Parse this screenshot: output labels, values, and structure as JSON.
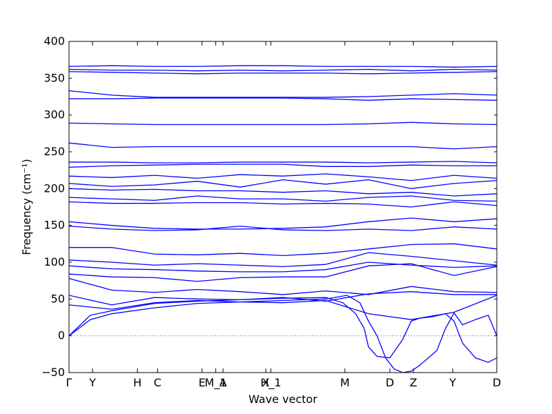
{
  "chart_data": {
    "type": "line",
    "title": "",
    "xlabel": "Wave vector",
    "ylabel": "Frequency (cm⁻¹)",
    "ylim": [
      -50,
      400
    ],
    "yticks": [
      -50,
      0,
      50,
      100,
      150,
      200,
      250,
      300,
      350,
      400
    ],
    "xlim": [
      0,
      1
    ],
    "xticks": [
      {
        "label": "Γ",
        "x": 0.0
      },
      {
        "label": "Y",
        "x": 0.055
      },
      {
        "label": "H",
        "x": 0.16
      },
      {
        "label": "C",
        "x": 0.207
      },
      {
        "label": "E",
        "x": 0.311
      },
      {
        "label": "M_1",
        "x": 0.343
      },
      {
        "label": "A",
        "x": 0.36
      },
      {
        "label": "X",
        "x": 0.46
      },
      {
        "label": "H_1",
        "x": 0.472
      },
      {
        "label": "M",
        "x": 0.645
      },
      {
        "label": "D",
        "x": 0.75
      },
      {
        "label": "Z",
        "x": 0.805
      },
      {
        "label": "Y",
        "x": 0.897
      },
      {
        "label": "D",
        "x": 1.0
      }
    ],
    "zero_line": {
      "y": 0,
      "style": "dotted"
    },
    "line_color": "#0000ff",
    "series": [
      {
        "x": [
          0,
          0.1,
          0.2,
          0.3,
          0.4,
          0.5,
          0.6,
          0.7,
          0.8,
          0.9,
          1.0
        ],
        "y": [
          366,
          367,
          366,
          366,
          367,
          367,
          366,
          366,
          366,
          365,
          366
        ]
      },
      {
        "x": [
          0,
          0.1,
          0.2,
          0.3,
          0.4,
          0.5,
          0.6,
          0.7,
          0.8,
          0.9,
          1.0
        ],
        "y": [
          362,
          361,
          361,
          360,
          361,
          360,
          361,
          362,
          360,
          362,
          361
        ]
      },
      {
        "x": [
          0,
          0.1,
          0.2,
          0.3,
          0.4,
          0.5,
          0.6,
          0.7,
          0.8,
          0.9,
          1.0
        ],
        "y": [
          359,
          358,
          357,
          356,
          357,
          357,
          357,
          356,
          357,
          358,
          359
        ]
      },
      {
        "x": [
          0,
          0.1,
          0.2,
          0.3,
          0.4,
          0.5,
          0.6,
          0.7,
          0.8,
          0.9,
          1.0
        ],
        "y": [
          333,
          327,
          324,
          324,
          324,
          324,
          324,
          325,
          327,
          329,
          327
        ]
      },
      {
        "x": [
          0,
          0.1,
          0.2,
          0.3,
          0.4,
          0.5,
          0.6,
          0.7,
          0.8,
          0.9,
          1.0
        ],
        "y": [
          322,
          322,
          323,
          323,
          323,
          323,
          322,
          320,
          322,
          321,
          320
        ]
      },
      {
        "x": [
          0,
          0.1,
          0.2,
          0.3,
          0.4,
          0.5,
          0.6,
          0.7,
          0.8,
          0.9,
          1.0
        ],
        "y": [
          289,
          288,
          287,
          287,
          287,
          287,
          287,
          288,
          290,
          288,
          287
        ]
      },
      {
        "x": [
          0,
          0.1,
          0.2,
          0.3,
          0.4,
          0.5,
          0.6,
          0.7,
          0.8,
          0.9,
          1.0
        ],
        "y": [
          262,
          256,
          257,
          257,
          257,
          257,
          257,
          257,
          257,
          254,
          257
        ]
      },
      {
        "x": [
          0,
          0.1,
          0.2,
          0.3,
          0.4,
          0.5,
          0.6,
          0.7,
          0.8,
          0.9,
          1.0
        ],
        "y": [
          236,
          236,
          235,
          235,
          236,
          236,
          236,
          235,
          236,
          237,
          235
        ]
      },
      {
        "x": [
          0,
          0.1,
          0.2,
          0.3,
          0.4,
          0.5,
          0.6,
          0.7,
          0.8,
          0.9,
          1.0
        ],
        "y": [
          229,
          231,
          232,
          233,
          233,
          233,
          230,
          230,
          232,
          231,
          231
        ]
      },
      {
        "x": [
          0,
          0.1,
          0.2,
          0.3,
          0.4,
          0.5,
          0.6,
          0.7,
          0.8,
          0.9,
          1.0
        ],
        "y": [
          217,
          215,
          218,
          214,
          219,
          217,
          220,
          216,
          211,
          218,
          214
        ]
      },
      {
        "x": [
          0,
          0.1,
          0.2,
          0.3,
          0.4,
          0.5,
          0.6,
          0.7,
          0.8,
          0.9,
          1.0
        ],
        "y": [
          207,
          203,
          205,
          210,
          202,
          212,
          206,
          212,
          200,
          207,
          211
        ]
      },
      {
        "x": [
          0,
          0.1,
          0.2,
          0.3,
          0.4,
          0.5,
          0.6,
          0.7,
          0.8,
          0.9,
          1.0
        ],
        "y": [
          200,
          198,
          199,
          197,
          197,
          195,
          197,
          193,
          195,
          190,
          193
        ]
      },
      {
        "x": [
          0,
          0.1,
          0.2,
          0.3,
          0.4,
          0.5,
          0.6,
          0.7,
          0.8,
          0.9,
          1.0
        ],
        "y": [
          188,
          186,
          184,
          190,
          186,
          186,
          183,
          188,
          190,
          184,
          183
        ]
      },
      {
        "x": [
          0,
          0.1,
          0.2,
          0.3,
          0.4,
          0.5,
          0.6,
          0.7,
          0.8,
          0.9,
          1.0
        ],
        "y": [
          182,
          180,
          180,
          181,
          181,
          179,
          180,
          179,
          175,
          182,
          177
        ]
      },
      {
        "x": [
          0,
          0.1,
          0.2,
          0.3,
          0.4,
          0.5,
          0.6,
          0.7,
          0.8,
          0.9,
          1.0
        ],
        "y": [
          155,
          150,
          146,
          145,
          145,
          146,
          148,
          155,
          160,
          155,
          159
        ]
      },
      {
        "x": [
          0,
          0.1,
          0.2,
          0.3,
          0.4,
          0.5,
          0.6,
          0.7,
          0.8,
          0.9,
          1.0
        ],
        "y": [
          149,
          145,
          143,
          144,
          149,
          144,
          143,
          145,
          143,
          148,
          145
        ]
      },
      {
        "x": [
          0,
          0.1,
          0.2,
          0.3,
          0.4,
          0.5,
          0.6,
          0.7,
          0.8,
          0.9,
          1.0
        ],
        "y": [
          120,
          120,
          111,
          110,
          112,
          109,
          112,
          118,
          124,
          125,
          118
        ]
      },
      {
        "x": [
          0,
          0.1,
          0.2,
          0.3,
          0.4,
          0.5,
          0.6,
          0.7,
          0.8,
          0.9,
          1.0
        ],
        "y": [
          103,
          100,
          96,
          98,
          96,
          94,
          97,
          113,
          108,
          102,
          96
        ]
      },
      {
        "x": [
          0,
          0.1,
          0.2,
          0.3,
          0.4,
          0.5,
          0.6,
          0.7,
          0.8,
          0.9,
          1.0
        ],
        "y": [
          95,
          91,
          90,
          88,
          87,
          87,
          90,
          100,
          96,
          93,
          95
        ]
      },
      {
        "x": [
          0,
          0.1,
          0.2,
          0.3,
          0.4,
          0.5,
          0.6,
          0.7,
          0.8,
          0.9,
          1.0
        ],
        "y": [
          84,
          80,
          79,
          74,
          79,
          80,
          80,
          95,
          98,
          82,
          94
        ]
      },
      {
        "x": [
          0,
          0.1,
          0.2,
          0.3,
          0.4,
          0.5,
          0.6,
          0.7,
          0.8,
          0.9,
          1.0
        ],
        "y": [
          78,
          62,
          59,
          63,
          60,
          56,
          61,
          56,
          67,
          60,
          59
        ]
      },
      {
        "x": [
          0,
          0.1,
          0.2,
          0.3,
          0.4,
          0.5,
          0.6,
          0.7,
          0.8,
          0.9,
          1.0
        ],
        "y": [
          55,
          42,
          52,
          50,
          49,
          52,
          47,
          57,
          60,
          56,
          56
        ]
      },
      {
        "x": [
          0,
          0.1,
          0.2,
          0.3,
          0.4,
          0.5,
          0.6,
          0.7,
          0.8,
          0.9,
          1.0
        ],
        "y": [
          42,
          36,
          45,
          48,
          46,
          45,
          48,
          30,
          22,
          32,
          55
        ]
      },
      {
        "x": [
          0,
          0.05,
          0.1,
          0.2,
          0.3,
          0.4,
          0.5,
          0.6,
          0.64,
          0.67,
          0.69,
          0.7,
          0.72,
          0.75,
          0.78,
          0.8,
          0.82,
          0.85,
          0.88,
          0.9,
          0.92,
          0.95,
          0.98,
          1.0
        ],
        "y": [
          0,
          28,
          34,
          44,
          47,
          49,
          51,
          52,
          45,
          30,
          10,
          -15,
          -28,
          -30,
          -5,
          20,
          24,
          26,
          30,
          20,
          -10,
          -30,
          -36,
          -30
        ]
      },
      {
        "x": [
          0,
          0.05,
          0.1,
          0.2,
          0.3,
          0.4,
          0.5,
          0.6,
          0.65,
          0.68,
          0.7,
          0.72,
          0.74,
          0.76,
          0.78,
          0.8,
          0.82,
          0.86,
          0.88,
          0.9,
          0.92,
          0.95,
          0.98,
          1.0
        ],
        "y": [
          0,
          22,
          30,
          38,
          44,
          46,
          48,
          50,
          55,
          45,
          20,
          0,
          -30,
          -45,
          -50,
          -48,
          -40,
          -20,
          10,
          31,
          15,
          22,
          28,
          0
        ]
      }
    ]
  }
}
